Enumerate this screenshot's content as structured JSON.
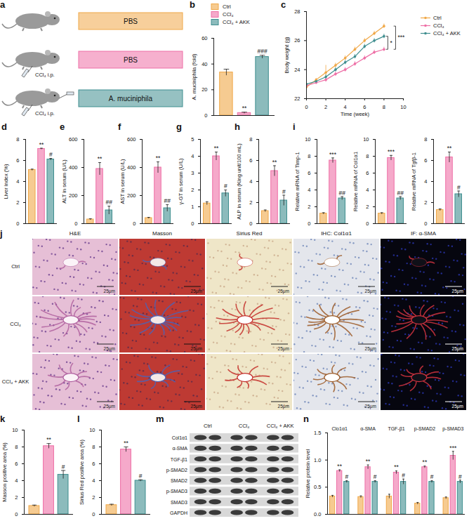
{
  "schematic": {
    "letter": "a",
    "rows": [
      {
        "label": "PBS",
        "color": "#F0A848",
        "injection": null
      },
      {
        "label": "PBS",
        "color": "#EE6FA6",
        "injection": "CCl₄ i.p."
      },
      {
        "label": "A. muciniphila",
        "color": "#3F8E8F",
        "injection": "CCl₄ i.p."
      }
    ]
  },
  "chart_data": [
    {
      "panel": "b",
      "type": "bar",
      "y_label": "A. muciniphila (fold)",
      "ylim": [
        0,
        60
      ],
      "yticks": [
        0,
        20,
        40,
        60
      ],
      "legend": "top",
      "tick_labels": "y",
      "series": [
        {
          "name": "Ctrl",
          "color": "#F0A848",
          "values": [
            33.5
          ],
          "errors": [
            2.5
          ],
          "annotations": [
            null
          ]
        },
        {
          "name": "CCl₄",
          "color": "#EE6FA6",
          "values": [
            2.0
          ],
          "errors": [
            0.6
          ],
          "annotations": [
            "**"
          ]
        },
        {
          "name": "CCl₄ + AKK",
          "color": "#3F8E8F",
          "values": [
            45.5
          ],
          "errors": [
            1.3
          ],
          "annotations": [
            "###"
          ]
        }
      ]
    },
    {
      "panel": "c",
      "type": "line",
      "x": [
        0,
        1,
        2,
        3,
        4,
        5,
        6,
        7,
        8
      ],
      "x_label": "Time (week)",
      "y_label": "Body weight (g)",
      "xlim": [
        0,
        10
      ],
      "xticks": [
        0,
        2,
        4,
        6,
        8,
        10
      ],
      "ylim": [
        22,
        28
      ],
      "yticks": [
        22,
        24,
        26,
        28
      ],
      "marker": "circle",
      "legend": "right",
      "series": [
        {
          "name": "Ctrl",
          "color": "#F0A848",
          "values": [
            22.8,
            23.3,
            23.8,
            24.3,
            24.8,
            25.4,
            26.0,
            26.5,
            27.0
          ],
          "errors": [
            0.1,
            0.1,
            0.5,
            0.15,
            0.15,
            0.15,
            0.15,
            0.15,
            0.15
          ]
        },
        {
          "name": "CCl₄",
          "color": "#EE6FA6",
          "values": [
            22.9,
            23.1,
            23.3,
            23.7,
            24.0,
            24.4,
            24.8,
            25.2,
            25.4
          ],
          "errors": [
            0.1,
            0.1,
            0.15,
            0.15,
            0.15,
            0.15,
            0.15,
            0.15,
            0.15
          ]
        },
        {
          "name": "CCl₄ + AKK",
          "color": "#3F8E8F",
          "values": [
            23.0,
            23.2,
            23.5,
            24.0,
            24.5,
            24.9,
            25.6,
            26.0,
            26.3
          ],
          "errors": [
            0.1,
            0.1,
            0.15,
            0.15,
            0.15,
            0.15,
            0.15,
            0.15,
            0.15
          ]
        }
      ],
      "brackets": [
        {
          "between": [
            "Ctrl",
            "CCl₄"
          ],
          "label": "***"
        },
        {
          "between": [
            "CCl₄",
            "CCl₄ + AKK"
          ],
          "label": "*"
        }
      ]
    },
    {
      "panel": "d",
      "type": "bar",
      "y_label": "Liver index (%)",
      "values": [
        5.1,
        7.1,
        6.1
      ],
      "errors": [
        0.08,
        0.06,
        0.1
      ],
      "annotations": [
        null,
        "**",
        "#"
      ],
      "colors": [
        "#F0A848",
        "#EE6FA6",
        "#3F8E8F"
      ],
      "ylim": [
        0,
        8
      ],
      "yticks": [
        0,
        2,
        4,
        6,
        8
      ],
      "tick_labels": "y"
    },
    {
      "panel": "e",
      "type": "bar",
      "y_label": "ALT in serum (U/L)",
      "values": [
        30,
        390,
        95
      ],
      "errors": [
        5,
        45,
        30
      ],
      "annotations": [
        null,
        "**",
        "##"
      ],
      "colors": [
        "#F0A848",
        "#EE6FA6",
        "#3F8E8F"
      ],
      "ylim": [
        0,
        600
      ],
      "yticks": [
        0,
        200,
        400,
        600
      ],
      "tick_labels": "y"
    },
    {
      "panel": "f",
      "type": "bar",
      "y_label": "AST in serum (U/L)",
      "values": [
        40,
        400,
        110
      ],
      "errors": [
        5,
        40,
        25
      ],
      "annotations": [
        null,
        "**",
        "##"
      ],
      "colors": [
        "#F0A848",
        "#EE6FA6",
        "#3F8E8F"
      ],
      "ylim": [
        0,
        600
      ],
      "yticks": [
        0,
        200,
        400,
        600
      ],
      "tick_labels": "y"
    },
    {
      "panel": "g",
      "type": "bar",
      "y_label": "γ-GT in serum (U/L)",
      "values": [
        1.2,
        4.0,
        1.8
      ],
      "errors": [
        0.1,
        0.25,
        0.2
      ],
      "annotations": [
        null,
        "**",
        "#"
      ],
      "colors": [
        "#F0A848",
        "#EE6FA6",
        "#3F8E8F"
      ],
      "ylim": [
        0,
        5
      ],
      "yticks": [
        0,
        1,
        2,
        3,
        4,
        5
      ],
      "tick_labels": "y"
    },
    {
      "panel": "h",
      "type": "bar",
      "y_label": "ALP in serum (King unit/100 mL)",
      "values": [
        1.2,
        5.0,
        2.2
      ],
      "errors": [
        0.1,
        0.5,
        0.5
      ],
      "annotations": [
        null,
        "**",
        "#"
      ],
      "colors": [
        "#F0A848",
        "#EE6FA6",
        "#3F8E8F"
      ],
      "ylim": [
        0,
        8
      ],
      "yticks": [
        0,
        2,
        4,
        6,
        8
      ],
      "tick_labels": "y"
    },
    {
      "panel": "i",
      "type": "bar",
      "y_label": "Relative mRNA of Timp-1",
      "values": [
        1.2,
        7.5,
        3.0
      ],
      "errors": [
        0.1,
        0.3,
        0.2
      ],
      "annotations": [
        null,
        "***",
        "##"
      ],
      "colors": [
        "#F0A848",
        "#EE6FA6",
        "#3F8E8F"
      ],
      "ylim": [
        0,
        10
      ],
      "yticks": [
        0,
        2,
        4,
        6,
        8,
        10
      ],
      "tick_labels": "y"
    },
    {
      "type": "bar",
      "y_label": "Relative mRNA of Col1α1",
      "values": [
        1.2,
        7.8,
        3.0
      ],
      "errors": [
        0.1,
        0.3,
        0.2
      ],
      "annotations": [
        null,
        "***",
        "##"
      ],
      "colors": [
        "#F0A848",
        "#EE6FA6",
        "#3F8E8F"
      ],
      "ylim": [
        0,
        10
      ],
      "yticks": [
        0,
        2,
        4,
        6,
        8,
        10
      ],
      "tick_labels": "y"
    },
    {
      "type": "bar",
      "y_label": "Relative mRNA of Tgfβ-1",
      "values": [
        1.3,
        6.3,
        2.8
      ],
      "errors": [
        0.1,
        0.5,
        0.3
      ],
      "annotations": [
        null,
        "**",
        "#"
      ],
      "colors": [
        "#F0A848",
        "#EE6FA6",
        "#3F8E8F"
      ],
      "ylim": [
        0,
        8
      ],
      "yticks": [
        0,
        2,
        4,
        6,
        8
      ],
      "tick_labels": "y"
    },
    {
      "panel": "k",
      "type": "bar",
      "y_label": "Masson positive area (%)",
      "values": [
        1.0,
        8.1,
        4.7
      ],
      "errors": [
        0.1,
        0.3,
        0.5
      ],
      "annotations": [
        null,
        "**",
        "#"
      ],
      "colors": [
        "#F0A848",
        "#EE6FA6",
        "#3F8E8F"
      ],
      "ylim": [
        0,
        10
      ],
      "yticks": [
        0,
        2,
        4,
        6,
        8,
        10
      ],
      "tick_labels": "y"
    },
    {
      "panel": "l",
      "type": "bar",
      "y_label": "Sirius Red positive area (%)",
      "values": [
        1.1,
        7.7,
        4.0
      ],
      "errors": [
        0.1,
        0.3,
        0.1
      ],
      "annotations": [
        null,
        "**",
        "#"
      ],
      "colors": [
        "#F0A848",
        "#EE6FA6",
        "#3F8E8F"
      ],
      "ylim": [
        0,
        10
      ],
      "yticks": [
        0,
        2,
        4,
        6,
        8,
        10
      ],
      "tick_labels": "y"
    },
    {
      "panel": "n",
      "type": "bar",
      "y_label": "Relative protein level",
      "categories": [
        "Clo1α1",
        "α-SMA",
        "TGF-β1",
        "p-SMAD2",
        "p-SMAD3"
      ],
      "ylim": [
        0,
        1.5
      ],
      "yticks": [
        {
          "value": 0,
          "label": "0.0"
        },
        0.5,
        {
          "value": 1,
          "label": "1.0"
        },
        1.5
      ],
      "tick_labels": "y",
      "series": [
        {
          "color": "#F0A848",
          "values": [
            0.33,
            0.32,
            0.33,
            0.2,
            0.3
          ],
          "errors": [
            0.02,
            0.02,
            0.04,
            0.02,
            0.02
          ],
          "annotations": [
            null,
            null,
            null,
            null,
            null
          ]
        },
        {
          "color": "#EE6FA6",
          "values": [
            0.8,
            0.87,
            0.77,
            0.87,
            1.08
          ],
          "errors": [
            0.02,
            0.04,
            0.03,
            0.02,
            0.08
          ],
          "annotations": [
            "**",
            "**",
            "**",
            "**",
            "***"
          ]
        },
        {
          "color": "#3F8E8F",
          "values": [
            0.6,
            0.6,
            0.6,
            0.6,
            0.6
          ],
          "errors": [
            0.02,
            0.02,
            0.05,
            0.02,
            0.03
          ],
          "annotations": [
            "#",
            "#",
            "#",
            "#",
            "#"
          ]
        }
      ]
    }
  ],
  "histology": {
    "letter": "j",
    "columns": [
      "H&E",
      "Masson",
      "Sirius Red",
      "IHC: Col1α1",
      "IF: α-SMA"
    ],
    "rows": [
      "Ctrl",
      "CCl₄",
      "CCl₄ + AKK"
    ],
    "scale_bar": "25μm"
  },
  "western_blot": {
    "letter": "m",
    "lanes": [
      "Ctrl",
      "CCl₄",
      "CCl₄ + AKK"
    ],
    "proteins": [
      "Col1α1",
      "α-SMA",
      "TGF-β1",
      "p-SMAD2",
      "SMAD2",
      "p-SMAD3",
      "SMAD3",
      "GAPDH"
    ]
  }
}
